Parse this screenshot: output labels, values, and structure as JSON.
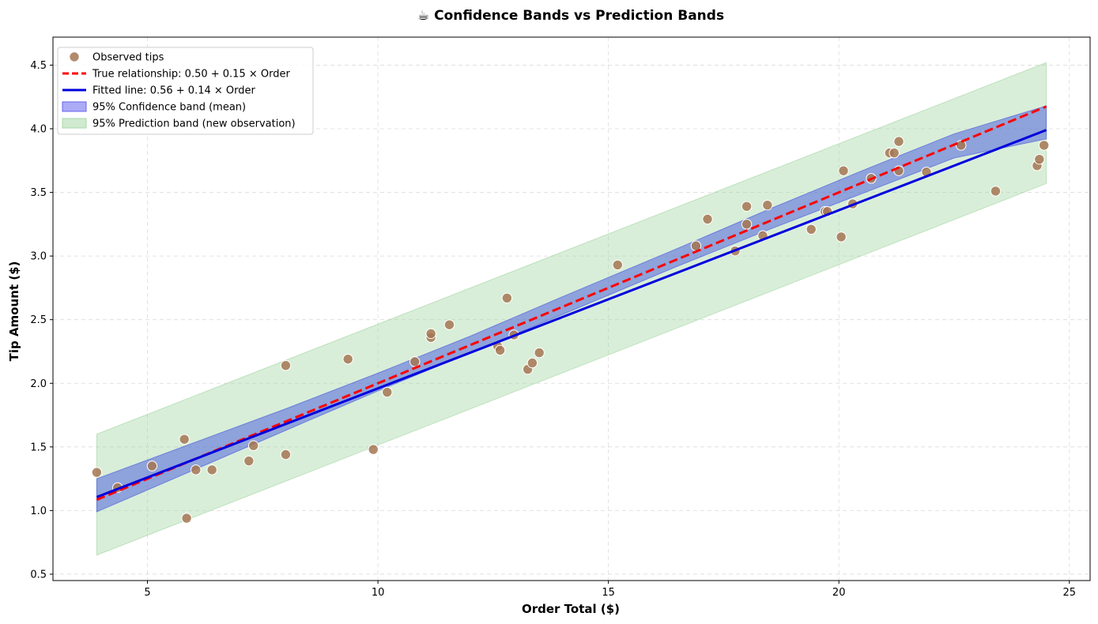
{
  "chart_data": {
    "type": "scatter",
    "title": "☕ Confidence Bands vs Prediction Bands",
    "xlabel": "Order Total ($)",
    "ylabel": "Tip Amount ($)",
    "xlim": [
      2.95,
      25.45
    ],
    "ylim": [
      0.45,
      4.72
    ],
    "xticks": [
      5,
      10,
      15,
      20,
      25
    ],
    "yticks": [
      0.5,
      1.0,
      1.5,
      2.0,
      2.5,
      3.0,
      3.5,
      4.0,
      4.5
    ],
    "xtick_labels": [
      "5",
      "10",
      "15",
      "20",
      "25"
    ],
    "ytick_labels": [
      "0.5",
      "1.0",
      "1.5",
      "2.0",
      "2.5",
      "3.0",
      "3.5",
      "4.0",
      "4.5"
    ],
    "grid": true,
    "legend_position": "top-left",
    "x_range": [
      3.9,
      24.5
    ],
    "true_line": {
      "intercept": 0.5,
      "slope": 0.15
    },
    "fitted_line": {
      "intercept": 0.56,
      "slope": 0.14
    },
    "confidence_band": {
      "x": [
        3.9,
        8.0,
        10.0,
        12.0,
        14.0,
        16.5,
        18.5,
        20.5,
        22.5,
        24.5
      ],
      "lower": [
        0.99,
        1.63,
        1.94,
        2.24,
        2.54,
        2.92,
        3.21,
        3.49,
        3.77,
        3.92
      ],
      "upper": [
        1.25,
        1.8,
        2.08,
        2.37,
        2.68,
        3.06,
        3.37,
        3.67,
        3.96,
        4.18
      ]
    },
    "prediction_band": {
      "x": [
        3.9,
        24.5
      ],
      "lower": [
        0.65,
        3.57
      ],
      "upper": [
        1.6,
        4.52
      ]
    },
    "series": [
      {
        "name": "Observed tips",
        "points": [
          [
            3.9,
            1.3
          ],
          [
            4.35,
            1.18
          ],
          [
            5.1,
            1.35
          ],
          [
            5.8,
            1.56
          ],
          [
            5.85,
            0.94
          ],
          [
            6.05,
            1.32
          ],
          [
            6.4,
            1.32
          ],
          [
            7.2,
            1.39
          ],
          [
            7.3,
            1.51
          ],
          [
            8.0,
            2.14
          ],
          [
            8.0,
            1.44
          ],
          [
            9.35,
            2.19
          ],
          [
            9.9,
            1.48
          ],
          [
            10.2,
            1.93
          ],
          [
            10.8,
            2.17
          ],
          [
            11.15,
            2.36
          ],
          [
            11.15,
            2.39
          ],
          [
            11.55,
            2.46
          ],
          [
            12.6,
            2.29
          ],
          [
            12.65,
            2.26
          ],
          [
            12.8,
            2.67
          ],
          [
            12.95,
            2.38
          ],
          [
            13.25,
            2.11
          ],
          [
            13.35,
            2.16
          ],
          [
            13.5,
            2.24
          ],
          [
            15.2,
            2.93
          ],
          [
            16.9,
            3.08
          ],
          [
            17.15,
            3.29
          ],
          [
            17.75,
            3.04
          ],
          [
            18.0,
            3.39
          ],
          [
            18.0,
            3.25
          ],
          [
            18.35,
            3.16
          ],
          [
            18.45,
            3.4
          ],
          [
            19.4,
            3.21
          ],
          [
            19.7,
            3.35
          ],
          [
            19.75,
            3.35
          ],
          [
            20.05,
            3.15
          ],
          [
            20.1,
            3.67
          ],
          [
            20.3,
            3.41
          ],
          [
            20.7,
            3.61
          ],
          [
            21.1,
            3.81
          ],
          [
            21.2,
            3.81
          ],
          [
            21.3,
            3.9
          ],
          [
            21.3,
            3.67
          ],
          [
            21.9,
            3.66
          ],
          [
            22.65,
            3.87
          ],
          [
            23.4,
            3.51
          ],
          [
            24.3,
            3.71
          ],
          [
            24.35,
            3.76
          ],
          [
            24.45,
            3.87
          ]
        ]
      }
    ],
    "legend": [
      {
        "label": "Observed tips",
        "kind": "marker",
        "color": "#a47552"
      },
      {
        "label": "True relationship: 0.50 + 0.15 × Order",
        "kind": "dashed-line",
        "color": "#ff0000"
      },
      {
        "label": "Fitted line: 0.56 + 0.14 × Order",
        "kind": "line",
        "color": "#0000dd"
      },
      {
        "label": "95% Confidence band (mean)",
        "kind": "patch",
        "color": "#6666ee"
      },
      {
        "label": "95% Prediction band (new observation)",
        "kind": "patch",
        "color": "#a8d8a8"
      }
    ],
    "colors": {
      "points": "#a47552",
      "true_line": "#ff0000",
      "fitted_line": "#0000dd",
      "confidence_band": "#4455dd",
      "prediction_band": "#9fd49f"
    }
  }
}
